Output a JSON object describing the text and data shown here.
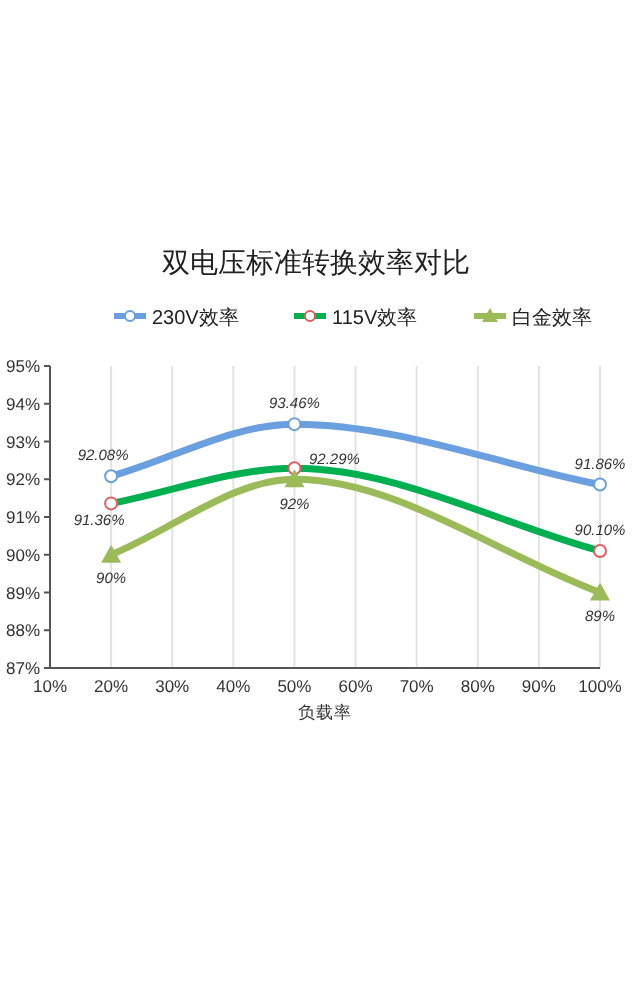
{
  "chart_data": {
    "type": "line",
    "title": "双电压标准转换效率对比",
    "xlabel": "负载率",
    "x": [
      20,
      50,
      100
    ],
    "xlim": [
      10,
      100
    ],
    "xticks": [
      {
        "value": 10,
        "label": "10%"
      },
      {
        "value": 20,
        "label": "20%"
      },
      {
        "value": 30,
        "label": "30%"
      },
      {
        "value": 40,
        "label": "40%"
      },
      {
        "value": 50,
        "label": "50%"
      },
      {
        "value": 60,
        "label": "60%"
      },
      {
        "value": 70,
        "label": "70%"
      },
      {
        "value": 80,
        "label": "80%"
      },
      {
        "value": 90,
        "label": "90%"
      },
      {
        "value": 100,
        "label": "100%"
      }
    ],
    "ylim": [
      87,
      95
    ],
    "yticks": [
      {
        "value": 87,
        "label": "87%"
      },
      {
        "value": 88,
        "label": "88%"
      },
      {
        "value": 89,
        "label": "89%"
      },
      {
        "value": 90,
        "label": "90%"
      },
      {
        "value": 91,
        "label": "91%"
      },
      {
        "value": 92,
        "label": "92%"
      },
      {
        "value": 93,
        "label": "93%"
      },
      {
        "value": 94,
        "label": "94%"
      },
      {
        "value": 95,
        "label": "95%"
      }
    ],
    "grid": "x",
    "legend": "top",
    "series": [
      {
        "name": "230V效率",
        "color": "#6a9fe0",
        "marker": "circle",
        "values": [
          92.08,
          93.46,
          91.86
        ],
        "value_labels": [
          "92.08%",
          "93.46%",
          "91.86%"
        ]
      },
      {
        "name": "115V效率",
        "color": "#00b050",
        "marker": "circle",
        "values": [
          91.36,
          92.29,
          90.1
        ],
        "value_labels": [
          "91.36%",
          "92.29%",
          "90.10%"
        ]
      },
      {
        "name": "白金效率",
        "color": "#9bbb59",
        "marker": "triangle",
        "values": [
          90,
          92,
          89
        ],
        "value_labels": [
          "90%",
          "92%",
          "89%"
        ]
      }
    ]
  }
}
